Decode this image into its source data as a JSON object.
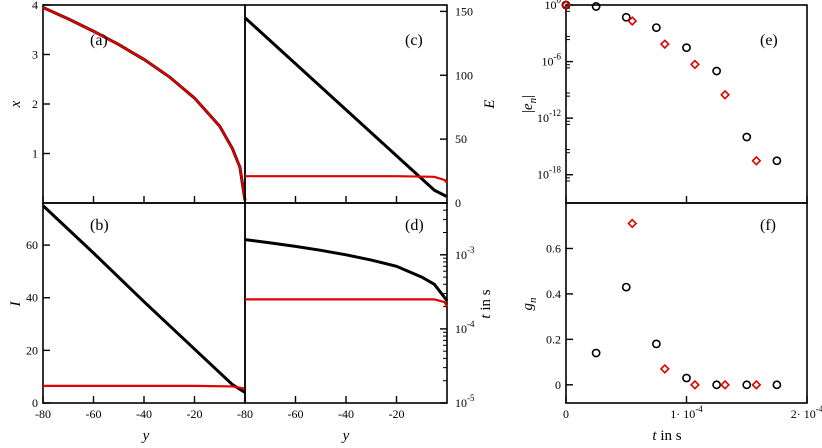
{
  "colors": {
    "black_series": "#000000",
    "red_series": "#e00000"
  },
  "chart_data": [
    {
      "id": "a",
      "type": "line",
      "panel_label": "(a)",
      "xlabel": "",
      "ylabel": "x",
      "xlim": [
        -80,
        0
      ],
      "ylim": [
        0,
        4
      ],
      "yticks": [
        {
          "v": 1,
          "t": "1"
        },
        {
          "v": 2,
          "t": "2"
        },
        {
          "v": 3,
          "t": "3"
        },
        {
          "v": 4,
          "t": "4"
        }
      ],
      "series": [
        {
          "color": "black",
          "x": [
            -80,
            -70,
            -60,
            -50,
            -40,
            -30,
            -20,
            -10,
            -5,
            -2,
            0
          ],
          "y": [
            3.95,
            3.72,
            3.47,
            3.2,
            2.9,
            2.55,
            2.12,
            1.55,
            1.1,
            0.72,
            0.05
          ]
        },
        {
          "color": "red",
          "x": [
            -80,
            -70,
            -60,
            -50,
            -40,
            -30,
            -20,
            -10,
            -5,
            -2,
            0
          ],
          "y": [
            3.95,
            3.72,
            3.47,
            3.2,
            2.9,
            2.55,
            2.12,
            1.55,
            1.1,
            0.72,
            0.05
          ]
        }
      ]
    },
    {
      "id": "b",
      "type": "line",
      "panel_label": "(b)",
      "xlabel": "y",
      "ylabel": "I",
      "xlim": [
        -80,
        0
      ],
      "ylim": [
        0,
        76
      ],
      "xticks": [
        {
          "v": -80,
          "t": "-80"
        },
        {
          "v": -60,
          "t": "-60"
        },
        {
          "v": -40,
          "t": "-40"
        },
        {
          "v": -20,
          "t": "-20"
        }
      ],
      "yticks": [
        {
          "v": 0,
          "t": "0"
        },
        {
          "v": 20,
          "t": "20"
        },
        {
          "v": 40,
          "t": "40"
        },
        {
          "v": 60,
          "t": "60"
        }
      ],
      "series": [
        {
          "color": "black",
          "x": [
            -80,
            -60,
            -40,
            -20,
            -5,
            0
          ],
          "y": [
            75,
            57,
            38.5,
            20.5,
            7,
            4
          ]
        },
        {
          "color": "red",
          "x": [
            -80,
            -60,
            -40,
            -20,
            -5,
            0
          ],
          "y": [
            6.5,
            6.5,
            6.5,
            6.5,
            6.3,
            5.5
          ]
        }
      ]
    },
    {
      "id": "c",
      "type": "line",
      "panel_label": "(c)",
      "xlabel": "",
      "ylabel": "E",
      "xlim": [
        -80,
        0
      ],
      "ylim": [
        0,
        155
      ],
      "yticks": [
        {
          "v": 0,
          "t": "0"
        },
        {
          "v": 50,
          "t": "50"
        },
        {
          "v": 100,
          "t": "100"
        },
        {
          "v": 150,
          "t": "150"
        }
      ],
      "series": [
        {
          "color": "black",
          "x": [
            -80,
            -60,
            -40,
            -20,
            -5,
            0
          ],
          "y": [
            145,
            109,
            73,
            37,
            10,
            5
          ]
        },
        {
          "color": "red",
          "x": [
            -80,
            -60,
            -40,
            -20,
            -5,
            -1,
            0
          ],
          "y": [
            21,
            21,
            21,
            21,
            20.5,
            18,
            16
          ]
        }
      ]
    },
    {
      "id": "d",
      "type": "line",
      "panel_label": "(d)",
      "xlabel": "y",
      "ylabel": "t in s",
      "yscale": "log",
      "xlim": [
        -80,
        0
      ],
      "ylim": [
        1e-05,
        0.005
      ],
      "xticks": [
        {
          "v": -80,
          "t": "-80"
        },
        {
          "v": -60,
          "t": "-60"
        },
        {
          "v": -40,
          "t": "-40"
        },
        {
          "v": -20,
          "t": "-20"
        }
      ],
      "yticks": [
        {
          "v": 1e-05,
          "t": "10",
          "e": "-5"
        },
        {
          "v": 0.0001,
          "t": "10",
          "e": "-4"
        },
        {
          "v": 0.001,
          "t": "10",
          "e": "-3"
        }
      ],
      "series": [
        {
          "color": "black",
          "x": [
            -80,
            -70,
            -60,
            -50,
            -40,
            -30,
            -20,
            -10,
            -5,
            0
          ],
          "y": [
            0.0016,
            0.00145,
            0.0013,
            0.00115,
            0.001,
            0.00085,
            0.0007,
            0.0005,
            0.0004,
            0.00024
          ]
        },
        {
          "color": "red",
          "x": [
            -80,
            -60,
            -40,
            -20,
            -5,
            -1,
            0
          ],
          "y": [
            0.00025,
            0.00025,
            0.00025,
            0.00025,
            0.00025,
            0.00023,
            0.0002
          ]
        }
      ]
    },
    {
      "id": "e",
      "type": "scatter",
      "panel_label": "(e)",
      "xlabel": "",
      "ylabel": "|e_n|",
      "yscale": "log",
      "xlim": [
        0,
        0.0002
      ],
      "ylim": [
        1e-21,
        1
      ],
      "yticks": [
        {
          "v": 1,
          "t": "10",
          "e": "0"
        },
        {
          "v": 1e-06,
          "t": "10",
          "e": "-6"
        },
        {
          "v": 1e-12,
          "t": "10",
          "e": "-12"
        },
        {
          "v": 1e-18,
          "t": "10",
          "e": "-18"
        }
      ],
      "series": [
        {
          "color": "black",
          "marker": "circle",
          "x": [
            0,
            2.5e-05,
            5e-05,
            7.5e-05,
            0.0001,
            0.000125,
            0.00015,
            0.000175
          ],
          "y": [
            1,
            0.7,
            0.05,
            0.004,
            3e-05,
            1e-07,
            1e-14,
            3e-17
          ]
        },
        {
          "color": "red",
          "marker": "diamond",
          "x": [
            0,
            5.5e-05,
            8.2e-05,
            0.000107,
            0.000132,
            0.000158
          ],
          "y": [
            1,
            0.02,
            7e-05,
            5e-07,
            3e-10,
            3e-17
          ]
        }
      ]
    },
    {
      "id": "f",
      "type": "scatter",
      "panel_label": "(f)",
      "xlabel": "t in s",
      "ylabel": "g_n",
      "xlim": [
        0,
        0.0002
      ],
      "ylim": [
        -0.08,
        0.8
      ],
      "xticks": [
        {
          "v": 0,
          "t": "0"
        },
        {
          "v": 0.0001,
          "t": "1· 10",
          "e": "-4"
        },
        {
          "v": 0.0002,
          "t": "2· 10",
          "e": "-4"
        }
      ],
      "yticks": [
        {
          "v": 0,
          "t": "0"
        },
        {
          "v": 0.2,
          "t": "0.2"
        },
        {
          "v": 0.4,
          "t": "0.4"
        },
        {
          "v": 0.6,
          "t": "0.6"
        }
      ],
      "series": [
        {
          "color": "black",
          "marker": "circle",
          "x": [
            2.5e-05,
            5e-05,
            7.5e-05,
            0.0001,
            0.000125,
            0.00015,
            0.000175
          ],
          "y": [
            0.14,
            0.43,
            0.18,
            0.03,
            0.0,
            0.0,
            0.0
          ]
        },
        {
          "color": "red",
          "marker": "diamond",
          "x": [
            5.5e-05,
            8.2e-05,
            0.000107,
            0.000132,
            0.000158
          ],
          "y": [
            0.71,
            0.07,
            0.0,
            0.0,
            0.0
          ]
        }
      ]
    }
  ]
}
